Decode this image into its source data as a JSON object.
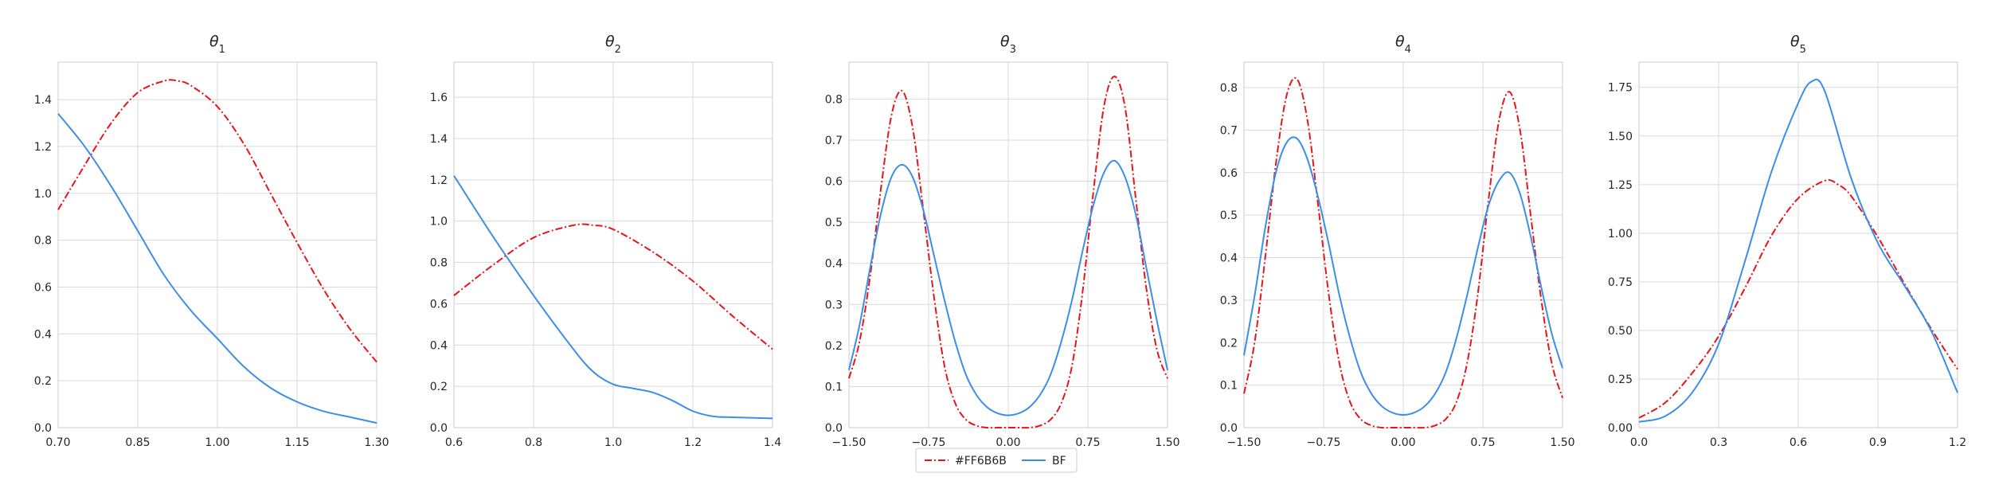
{
  "figure": {
    "legend": {
      "placement": "bottom-center",
      "entries": [
        {
          "label": "#FF6B6B",
          "color": "#e8141c",
          "style": "dash-dot"
        },
        {
          "label": "BF",
          "color": "#3b8fe8",
          "style": "solid"
        }
      ]
    }
  },
  "chart_data": [
    {
      "type": "line",
      "title_base": "θ",
      "title_sub": "1",
      "grid": true,
      "xlim": [
        0.7,
        1.3
      ],
      "ylim": [
        0,
        1.56
      ],
      "xticks": [
        0.7,
        0.85,
        1.0,
        1.15,
        1.3
      ],
      "xtick_labels": [
        "0.70",
        "0.85",
        "1.00",
        "1.15",
        "1.30"
      ],
      "yticks": [
        0,
        0.2,
        0.4,
        0.6,
        0.8,
        1.0,
        1.2,
        1.4
      ],
      "ytick_labels": [
        "0.0",
        "0.2",
        "0.4",
        "0.6",
        "0.8",
        "1.0",
        "1.2",
        "1.4"
      ],
      "series": [
        {
          "name": "#FF6B6B",
          "x": [
            0.7,
            0.75,
            0.8,
            0.85,
            0.9,
            0.925,
            0.95,
            1.0,
            1.05,
            1.1,
            1.15,
            1.2,
            1.25,
            1.3
          ],
          "y": [
            0.93,
            1.12,
            1.3,
            1.43,
            1.48,
            1.48,
            1.46,
            1.37,
            1.21,
            1.0,
            0.79,
            0.59,
            0.42,
            0.28
          ]
        },
        {
          "name": "BF",
          "x": [
            0.7,
            0.75,
            0.8,
            0.85,
            0.9,
            0.95,
            1.0,
            1.05,
            1.1,
            1.15,
            1.2,
            1.25,
            1.3
          ],
          "y": [
            1.34,
            1.2,
            1.03,
            0.84,
            0.65,
            0.5,
            0.38,
            0.26,
            0.17,
            0.11,
            0.07,
            0.045,
            0.02
          ]
        }
      ]
    },
    {
      "type": "line",
      "title_base": "θ",
      "title_sub": "2",
      "grid": true,
      "xlim": [
        0.6,
        1.4
      ],
      "ylim": [
        0,
        1.77
      ],
      "xticks": [
        0.6,
        0.8,
        1.0,
        1.2,
        1.4
      ],
      "xtick_labels": [
        "0.6",
        "0.8",
        "1.0",
        "1.2",
        "1.4"
      ],
      "yticks": [
        0,
        0.2,
        0.4,
        0.6,
        0.8,
        1.0,
        1.2,
        1.4,
        1.6
      ],
      "ytick_labels": [
        "0.0",
        "0.2",
        "0.4",
        "0.6",
        "0.8",
        "1.0",
        "1.2",
        "1.4",
        "1.6"
      ],
      "series": [
        {
          "name": "#FF6B6B",
          "x": [
            0.6,
            0.7,
            0.8,
            0.9,
            0.95,
            1.0,
            1.1,
            1.2,
            1.3,
            1.4
          ],
          "y": [
            0.64,
            0.79,
            0.92,
            0.98,
            0.98,
            0.96,
            0.85,
            0.71,
            0.54,
            0.38
          ]
        },
        {
          "name": "BF",
          "x": [
            0.6,
            0.7,
            0.8,
            0.9,
            0.95,
            1.0,
            1.05,
            1.1,
            1.15,
            1.2,
            1.25,
            1.3,
            1.4
          ],
          "y": [
            1.22,
            0.92,
            0.64,
            0.38,
            0.27,
            0.21,
            0.19,
            0.17,
            0.13,
            0.08,
            0.055,
            0.05,
            0.045
          ]
        }
      ]
    },
    {
      "type": "line",
      "title_base": "θ",
      "title_sub": "3",
      "grid": true,
      "xlim": [
        -1.5,
        1.5
      ],
      "ylim": [
        0,
        0.89
      ],
      "xticks": [
        -1.5,
        -0.75,
        0,
        0.75,
        1.5
      ],
      "xtick_labels": [
        "−1.50",
        "−0.75",
        "0.00",
        "0.75",
        "1.50"
      ],
      "yticks": [
        0,
        0.1,
        0.2,
        0.3,
        0.4,
        0.5,
        0.6,
        0.7,
        0.8
      ],
      "ytick_labels": [
        "0.0",
        "0.1",
        "0.2",
        "0.3",
        "0.4",
        "0.5",
        "0.6",
        "0.7",
        "0.8"
      ],
      "series": [
        {
          "name": "#FF6B6B",
          "x": [
            -1.5,
            -1.4,
            -1.3,
            -1.2,
            -1.1,
            -1.0,
            -0.9,
            -0.8,
            -0.7,
            -0.6,
            -0.5,
            -0.4,
            -0.3,
            -0.2,
            -0.1,
            0,
            0.1,
            0.2,
            0.3,
            0.4,
            0.5,
            0.6,
            0.7,
            0.8,
            0.9,
            1.0,
            1.1,
            1.2,
            1.3,
            1.4,
            1.5
          ],
          "y": [
            0.12,
            0.21,
            0.37,
            0.58,
            0.76,
            0.82,
            0.73,
            0.53,
            0.32,
            0.15,
            0.06,
            0.02,
            0.005,
            0,
            0,
            0,
            0,
            0,
            0.005,
            0.02,
            0.06,
            0.15,
            0.33,
            0.57,
            0.78,
            0.855,
            0.78,
            0.56,
            0.34,
            0.19,
            0.12
          ]
        },
        {
          "name": "BF",
          "x": [
            -1.5,
            -1.4,
            -1.3,
            -1.2,
            -1.1,
            -1.0,
            -0.9,
            -0.8,
            -0.7,
            -0.6,
            -0.5,
            -0.4,
            -0.3,
            -0.2,
            -0.1,
            0,
            0.1,
            0.2,
            0.3,
            0.4,
            0.5,
            0.6,
            0.7,
            0.8,
            0.9,
            1.0,
            1.1,
            1.2,
            1.3,
            1.4,
            1.5
          ],
          "y": [
            0.14,
            0.25,
            0.39,
            0.52,
            0.61,
            0.64,
            0.61,
            0.53,
            0.42,
            0.31,
            0.21,
            0.13,
            0.08,
            0.05,
            0.035,
            0.03,
            0.035,
            0.05,
            0.08,
            0.13,
            0.21,
            0.31,
            0.43,
            0.54,
            0.62,
            0.65,
            0.61,
            0.52,
            0.39,
            0.26,
            0.14
          ]
        }
      ]
    },
    {
      "type": "line",
      "title_base": "θ",
      "title_sub": "4",
      "grid": true,
      "xlim": [
        -1.5,
        1.5
      ],
      "ylim": [
        0,
        0.86
      ],
      "xticks": [
        -1.5,
        -0.75,
        0,
        0.75,
        1.5
      ],
      "xtick_labels": [
        "−1.50",
        "−0.75",
        "0.00",
        "0.75",
        "1.50"
      ],
      "yticks": [
        0,
        0.1,
        0.2,
        0.3,
        0.4,
        0.5,
        0.6,
        0.7,
        0.8
      ],
      "ytick_labels": [
        "0.0",
        "0.1",
        "0.2",
        "0.3",
        "0.4",
        "0.5",
        "0.6",
        "0.7",
        "0.8"
      ],
      "series": [
        {
          "name": "#FF6B6B",
          "x": [
            -1.5,
            -1.4,
            -1.3,
            -1.2,
            -1.1,
            -1.0,
            -0.9,
            -0.8,
            -0.7,
            -0.6,
            -0.5,
            -0.4,
            -0.3,
            -0.2,
            -0.1,
            0,
            0.1,
            0.2,
            0.3,
            0.4,
            0.5,
            0.6,
            0.7,
            0.8,
            0.9,
            1.0,
            1.1,
            1.2,
            1.3,
            1.4,
            1.5
          ],
          "y": [
            0.08,
            0.2,
            0.4,
            0.62,
            0.78,
            0.82,
            0.72,
            0.52,
            0.31,
            0.15,
            0.06,
            0.02,
            0.005,
            0,
            0,
            0,
            0,
            0,
            0.005,
            0.02,
            0.06,
            0.15,
            0.31,
            0.53,
            0.72,
            0.79,
            0.7,
            0.5,
            0.3,
            0.15,
            0.07
          ]
        },
        {
          "name": "BF",
          "x": [
            -1.5,
            -1.4,
            -1.3,
            -1.2,
            -1.1,
            -1.0,
            -0.9,
            -0.8,
            -0.7,
            -0.6,
            -0.5,
            -0.4,
            -0.3,
            -0.2,
            -0.1,
            0,
            0.1,
            0.2,
            0.3,
            0.4,
            0.5,
            0.6,
            0.7,
            0.8,
            0.9,
            1.0,
            1.1,
            1.2,
            1.3,
            1.4,
            1.5
          ],
          "y": [
            0.17,
            0.31,
            0.47,
            0.6,
            0.67,
            0.68,
            0.63,
            0.54,
            0.43,
            0.31,
            0.21,
            0.13,
            0.08,
            0.05,
            0.035,
            0.03,
            0.035,
            0.05,
            0.08,
            0.13,
            0.21,
            0.31,
            0.42,
            0.52,
            0.58,
            0.6,
            0.55,
            0.45,
            0.33,
            0.22,
            0.14
          ]
        }
      ]
    },
    {
      "type": "line",
      "title_base": "θ",
      "title_sub": "5",
      "grid": true,
      "xlim": [
        0,
        1.2
      ],
      "ylim": [
        0,
        1.88
      ],
      "xticks": [
        0,
        0.3,
        0.6,
        0.9,
        1.2
      ],
      "xtick_labels": [
        "0.0",
        "0.3",
        "0.6",
        "0.9",
        "1.2"
      ],
      "yticks": [
        0,
        0.25,
        0.5,
        0.75,
        1.0,
        1.25,
        1.5,
        1.75
      ],
      "ytick_labels": [
        "0.00",
        "0.25",
        "0.50",
        "0.75",
        "1.00",
        "1.25",
        "1.50",
        "1.75"
      ],
      "series": [
        {
          "name": "#FF6B6B",
          "x": [
            0,
            0.1,
            0.2,
            0.3,
            0.4,
            0.5,
            0.6,
            0.7,
            0.75,
            0.8,
            0.9,
            1.0,
            1.1,
            1.2
          ],
          "y": [
            0.05,
            0.13,
            0.28,
            0.47,
            0.72,
            0.99,
            1.18,
            1.27,
            1.25,
            1.19,
            0.98,
            0.74,
            0.51,
            0.3
          ]
        },
        {
          "name": "BF",
          "x": [
            0,
            0.1,
            0.2,
            0.3,
            0.4,
            0.5,
            0.6,
            0.65,
            0.7,
            0.8,
            0.9,
            1.0,
            1.1,
            1.2
          ],
          "y": [
            0.03,
            0.06,
            0.18,
            0.43,
            0.86,
            1.32,
            1.67,
            1.78,
            1.73,
            1.28,
            0.95,
            0.73,
            0.5,
            0.18
          ]
        }
      ]
    }
  ]
}
